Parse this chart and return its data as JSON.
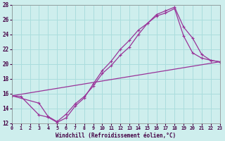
{
  "xlabel": "Windchill (Refroidissement éolien,°C)",
  "bg_color": "#ceeeed",
  "line_color": "#993399",
  "grid_color": "#aadddd",
  "xmin": 0,
  "xmax": 23,
  "ymin": 12,
  "ymax": 28,
  "yticks": [
    12,
    14,
    16,
    18,
    20,
    22,
    24,
    26,
    28
  ],
  "xticks": [
    0,
    1,
    2,
    3,
    4,
    5,
    6,
    7,
    8,
    9,
    10,
    11,
    12,
    13,
    14,
    15,
    16,
    17,
    18,
    19,
    20,
    21,
    22,
    23
  ],
  "line1_x": [
    0,
    1,
    3,
    4,
    5,
    6,
    7,
    8,
    9,
    10,
    11,
    12,
    13,
    14,
    15,
    16,
    17,
    18,
    19,
    20,
    21,
    22,
    23
  ],
  "line1_y": [
    15.7,
    15.6,
    13.1,
    12.8,
    12.1,
    12.7,
    14.3,
    15.4,
    17.3,
    19.1,
    20.4,
    22.0,
    23.2,
    24.6,
    25.5,
    26.7,
    27.2,
    27.7,
    25.0,
    23.5,
    21.3,
    20.5,
    20.3
  ],
  "line2_x": [
    0,
    3,
    4,
    5,
    6,
    7,
    8,
    9,
    10,
    11,
    12,
    13,
    14,
    15,
    16,
    17,
    18,
    19,
    20,
    21,
    22,
    23
  ],
  "line2_y": [
    15.7,
    14.7,
    12.9,
    12.2,
    13.2,
    14.6,
    15.6,
    17.0,
    18.7,
    19.8,
    21.2,
    22.3,
    24.0,
    25.5,
    26.5,
    26.9,
    27.5,
    23.8,
    21.5,
    20.8,
    20.5,
    20.3
  ],
  "line3_x": [
    0,
    23
  ],
  "line3_y": [
    15.7,
    20.3
  ]
}
